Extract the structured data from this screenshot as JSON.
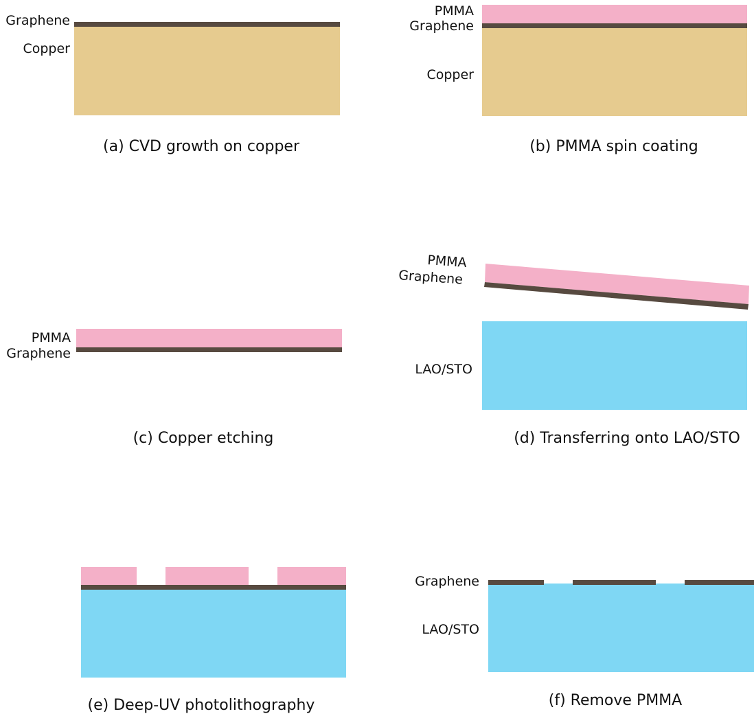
{
  "colors": {
    "copper": "#e6cb8f",
    "graphene": "#574a40",
    "pmma": "#f4b0c8",
    "substrate": "#7fd7f4",
    "text": "#111111"
  },
  "panels": {
    "a": {
      "caption": "(a) CVD growth on copper",
      "labels": {
        "graphene": "Graphene",
        "copper": "Copper"
      }
    },
    "b": {
      "caption": "(b) PMMA spin coating",
      "labels": {
        "pmma": "PMMA",
        "graphene": "Graphene",
        "copper": "Copper"
      }
    },
    "c": {
      "caption": "(c) Copper etching",
      "labels": {
        "pmma": "PMMA",
        "graphene": "Graphene"
      }
    },
    "d": {
      "caption": "(d) Transferring onto LAO/STO",
      "labels": {
        "pmma": "PMMA",
        "graphene": "Graphene",
        "substrate": "LAO/STO"
      }
    },
    "e": {
      "caption": "(e) Deep-UV photolithography"
    },
    "f": {
      "caption": "(f) Remove PMMA",
      "labels": {
        "graphene": "Graphene",
        "substrate": "LAO/STO"
      }
    }
  }
}
